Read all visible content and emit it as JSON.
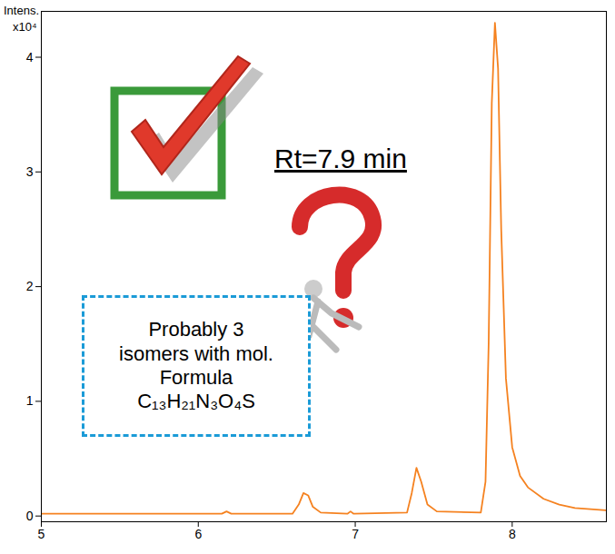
{
  "chart_data": {
    "type": "line",
    "ylabel": "Intens.",
    "yunit": "x10⁴",
    "annotations": [
      "Rt=7.9 min",
      "Probably 3 isomers with mol. Formula C₁₃H₂₁N₃O₄S"
    ],
    "color": "#f58220",
    "xlim": [
      5,
      8.6
    ],
    "xticks": [
      5,
      6,
      7,
      8
    ],
    "ylim": [
      -0.05,
      4.4
    ],
    "yticks": [
      0,
      1,
      2,
      3,
      4
    ],
    "grid": false,
    "x": [
      5.0,
      5.5,
      6.0,
      6.15,
      6.18,
      6.21,
      6.6,
      6.64,
      6.67,
      6.7,
      6.73,
      6.78,
      6.95,
      6.97,
      6.99,
      7.33,
      7.36,
      7.39,
      7.42,
      7.46,
      7.52,
      7.8,
      7.83,
      7.85,
      7.87,
      7.89,
      7.91,
      7.93,
      7.96,
      8.0,
      8.05,
      8.1,
      8.2,
      8.3,
      8.4,
      8.6
    ],
    "values": [
      0.02,
      0.02,
      0.02,
      0.02,
      0.04,
      0.02,
      0.02,
      0.1,
      0.2,
      0.18,
      0.08,
      0.03,
      0.02,
      0.04,
      0.02,
      0.03,
      0.2,
      0.42,
      0.3,
      0.1,
      0.04,
      0.03,
      0.3,
      1.5,
      3.6,
      4.3,
      3.9,
      2.5,
      1.2,
      0.6,
      0.35,
      0.25,
      0.15,
      0.1,
      0.07,
      0.05
    ]
  }
}
